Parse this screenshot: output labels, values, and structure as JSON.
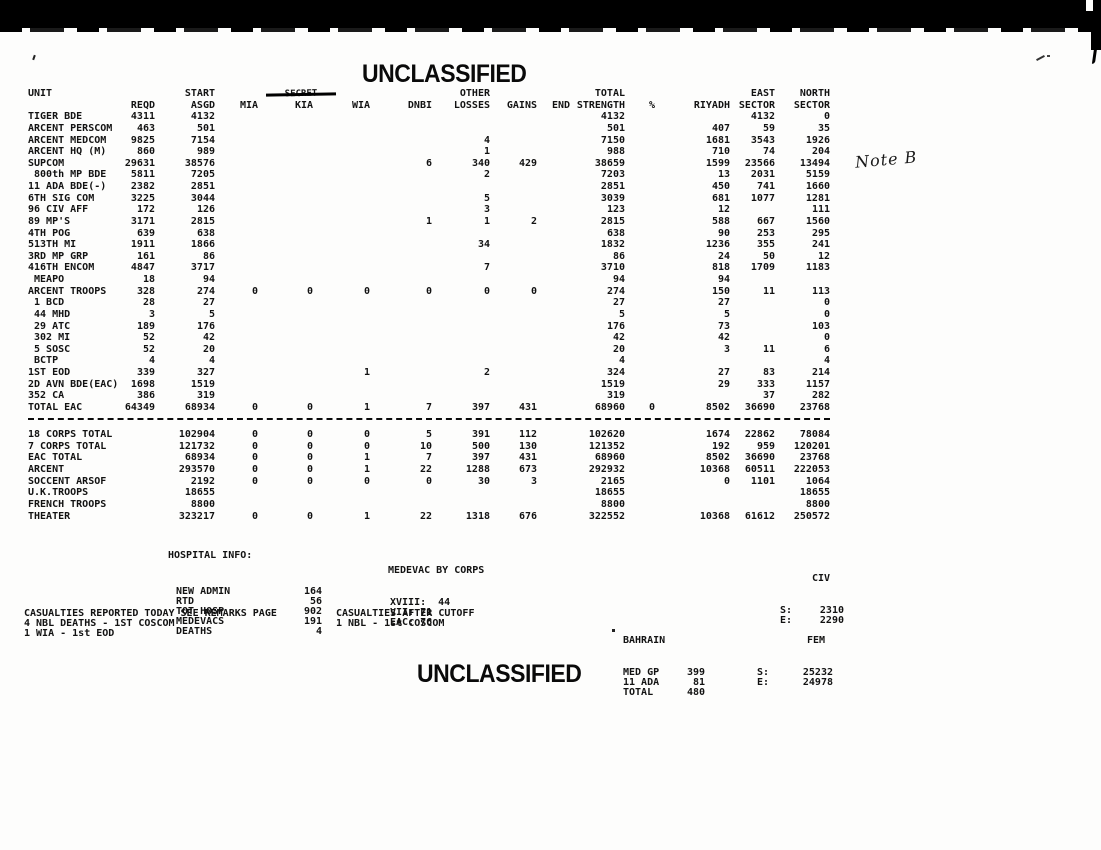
{
  "page": {
    "classification_top": "UNCLASSIFIED",
    "classification_bottom": "UNCLASSIFIED",
    "secret_struck": "SECRET",
    "handwritten_note": "Note B"
  },
  "colors": {
    "ink": "#121212",
    "paper": "#fdfdfc",
    "scan_band": "#000000"
  },
  "table": {
    "header_row1": [
      "UNIT",
      "",
      "START",
      "",
      "",
      "",
      "",
      "OTHER",
      "",
      "",
      "TOTAL",
      "",
      "",
      "EAST",
      "NORTH"
    ],
    "header_row2": [
      "",
      "REQD",
      "ASGD",
      "MIA",
      "KIA",
      "WIA",
      "DNBI",
      "LOSSES",
      "GAINS",
      "END",
      "STRENGTH",
      "%",
      "RIYADH",
      "SECTOR",
      "SECTOR"
    ],
    "columns": [
      "unit",
      "reqd",
      "asgd",
      "mia",
      "kia",
      "wia",
      "dnbi",
      "other-losses",
      "gains",
      "end",
      "total-strength",
      "pct",
      "riyadh",
      "east-sector",
      "north-sector"
    ],
    "rows": [
      [
        "TIGER BDE",
        "4311",
        "4132",
        "",
        "",
        "",
        "",
        "",
        "",
        "",
        "4132",
        "",
        "",
        "4132",
        "0"
      ],
      [
        "ARCENT PERSCOM",
        "463",
        "501",
        "",
        "",
        "",
        "",
        "",
        "",
        "",
        "501",
        "",
        "407",
        "59",
        "35"
      ],
      [
        "ARCENT MEDCOM",
        "9825",
        "7154",
        "",
        "",
        "",
        "",
        "4",
        "",
        "",
        "7150",
        "",
        "1681",
        "3543",
        "1926"
      ],
      [
        "ARCENT HQ (M)",
        "860",
        "989",
        "",
        "",
        "",
        "",
        "1",
        "",
        "",
        "988",
        "",
        "710",
        "74",
        "204"
      ],
      [
        "SUPCOM",
        "29631",
        "38576",
        "",
        "",
        "",
        "6",
        "340",
        "429",
        "",
        "38659",
        "",
        "1599",
        "23566",
        "13494"
      ],
      [
        " 800th MP BDE",
        "5811",
        "7205",
        "",
        "",
        "",
        "",
        "2",
        "",
        "",
        "7203",
        "",
        "13",
        "2031",
        "5159"
      ],
      [
        "11 ADA BDE(-)",
        "2382",
        "2851",
        "",
        "",
        "",
        "",
        "",
        "",
        "",
        "2851",
        "",
        "450",
        "741",
        "1660"
      ],
      [
        "6TH SIG COM",
        "3225",
        "3044",
        "",
        "",
        "",
        "",
        "5",
        "",
        "",
        "3039",
        "",
        "681",
        "1077",
        "1281"
      ],
      [
        "96 CIV AFF",
        "172",
        "126",
        "",
        "",
        "",
        "",
        "3",
        "",
        "",
        "123",
        "",
        "12",
        "",
        "111"
      ],
      [
        "89 MP'S",
        "3171",
        "2815",
        "",
        "",
        "",
        "1",
        "1",
        "2",
        "",
        "2815",
        "",
        "588",
        "667",
        "1560"
      ],
      [
        "4TH POG",
        "639",
        "638",
        "",
        "",
        "",
        "",
        "",
        "",
        "",
        "638",
        "",
        "90",
        "253",
        "295"
      ],
      [
        "513TH MI",
        "1911",
        "1866",
        "",
        "",
        "",
        "",
        "34",
        "",
        "",
        "1832",
        "",
        "1236",
        "355",
        "241"
      ],
      [
        "3RD MP GRP",
        "161",
        "86",
        "",
        "",
        "",
        "",
        "",
        "",
        "",
        "86",
        "",
        "24",
        "50",
        "12"
      ],
      [
        "416TH ENCOM",
        "4847",
        "3717",
        "",
        "",
        "",
        "",
        "7",
        "",
        "",
        "3710",
        "",
        "818",
        "1709",
        "1183"
      ],
      [
        " MEAPO",
        "18",
        "94",
        "",
        "",
        "",
        "",
        "",
        "",
        "",
        "94",
        "",
        "94",
        "",
        ""
      ],
      [
        "ARCENT TROOPS",
        "328",
        "274",
        "0",
        "0",
        "0",
        "0",
        "0",
        "0",
        "",
        "274",
        "",
        "150",
        "11",
        "113"
      ],
      [
        " 1 BCD",
        "28",
        "27",
        "",
        "",
        "",
        "",
        "",
        "",
        "",
        "27",
        "",
        "27",
        "",
        "0"
      ],
      [
        " 44 MHD",
        "3",
        "5",
        "",
        "",
        "",
        "",
        "",
        "",
        "",
        "5",
        "",
        "5",
        "",
        "0"
      ],
      [
        " 29 ATC",
        "189",
        "176",
        "",
        "",
        "",
        "",
        "",
        "",
        "",
        "176",
        "",
        "73",
        "",
        "103"
      ],
      [
        " 302 MI",
        "52",
        "42",
        "",
        "",
        "",
        "",
        "",
        "",
        "",
        "42",
        "",
        "42",
        "",
        "0"
      ],
      [
        " 5 SOSC",
        "52",
        "20",
        "",
        "",
        "",
        "",
        "",
        "",
        "",
        "20",
        "",
        "3",
        "11",
        "6"
      ],
      [
        " BCTP",
        "4",
        "4",
        "",
        "",
        "",
        "",
        "",
        "",
        "",
        "4",
        "",
        "",
        "",
        "4"
      ],
      [
        "1ST EOD",
        "339",
        "327",
        "",
        "",
        "1",
        "",
        "2",
        "",
        "",
        "324",
        "",
        "27",
        "83",
        "214"
      ],
      [
        "2D AVN BDE(EAC)",
        "1698",
        "1519",
        "",
        "",
        "",
        "",
        "",
        "",
        "",
        "1519",
        "",
        "29",
        "333",
        "1157"
      ],
      [
        "352 CA",
        "386",
        "319",
        "",
        "",
        "",
        "",
        "",
        "",
        "",
        "319",
        "",
        "",
        "37",
        "282"
      ],
      [
        "TOTAL EAC",
        "64349",
        "68934",
        "0",
        "0",
        "1",
        "7",
        "397",
        "431",
        "",
        "68960",
        "0",
        "8502",
        "36690",
        "23768"
      ]
    ],
    "summary_rows": [
      [
        "18 CORPS TOTAL",
        "",
        "102904",
        "0",
        "0",
        "0",
        "5",
        "391",
        "112",
        "",
        "102620",
        "",
        "1674",
        "22862",
        "78084"
      ],
      [
        "7 CORPS TOTAL",
        "",
        "121732",
        "0",
        "0",
        "0",
        "10",
        "500",
        "130",
        "",
        "121352",
        "",
        "192",
        "959",
        "120201"
      ],
      [
        "EAC TOTAL",
        "",
        "68934",
        "0",
        "0",
        "1",
        "7",
        "397",
        "431",
        "",
        "68960",
        "",
        "8502",
        "36690",
        "23768"
      ],
      [
        "ARCENT",
        "",
        "293570",
        "0",
        "0",
        "1",
        "22",
        "1288",
        "673",
        "",
        "292932",
        "",
        "10368",
        "60511",
        "222053"
      ],
      [
        "SOCCENT ARSOF",
        "",
        "2192",
        "0",
        "0",
        "0",
        "0",
        "30",
        "3",
        "",
        "2165",
        "",
        "0",
        "1101",
        "1064"
      ],
      [
        "U.K.TROOPS",
        "",
        "18655",
        "",
        "",
        "",
        "",
        "",
        "",
        "",
        "18655",
        "",
        "",
        "",
        "18655"
      ],
      [
        "FRENCH TROOPS",
        "",
        "8800",
        "",
        "",
        "",
        "",
        "",
        "",
        "",
        "8800",
        "",
        "",
        "",
        "8800"
      ],
      [
        "THEATER",
        "",
        "323217",
        "0",
        "0",
        "1",
        "22",
        "1318",
        "676",
        "",
        "322552",
        "",
        "10368",
        "61612",
        "250572"
      ]
    ]
  },
  "hospital": {
    "title": "HOSPITAL INFO:",
    "items": [
      {
        "label": "NEW ADMIN",
        "value": "164"
      },
      {
        "label": "RTD",
        "value": "56"
      },
      {
        "label": "TOT HOSP",
        "value": "902"
      },
      {
        "label": "MEDEVACS",
        "value": "191"
      },
      {
        "label": "DEATHS",
        "value": "4"
      }
    ]
  },
  "medevac": {
    "title": "MEDEVAC BY CORPS",
    "lines": [
      "XVIII:  44",
      "VII: 71",
      "EAC: 76"
    ]
  },
  "civ": {
    "title": "CIV",
    "items": [
      {
        "label": "S:",
        "value": "2310"
      },
      {
        "label": "E:",
        "value": "2290"
      }
    ]
  },
  "casualties_today": {
    "lines": [
      "CASUALTIES REPORTED TODAY SEE REMARKS PAGE",
      "4 NBL DEATHS - 1ST COSCOM",
      "1 WIA - 1st EOD"
    ]
  },
  "casualties_after": {
    "lines": [
      "CASUALTIES AFTER CUTOFF",
      "1 NBL - 1st COSCOM"
    ]
  },
  "bahrain": {
    "title": "BAHRAIN",
    "items": [
      {
        "label": "MED GP",
        "value": "399"
      },
      {
        "label": "11 ADA",
        "value": "81"
      },
      {
        "label": "TOTAL",
        "value": "480"
      }
    ]
  },
  "fem": {
    "title": "FEM",
    "items": [
      {
        "label": "S:",
        "value": "25232"
      },
      {
        "label": "E:",
        "value": "24978"
      }
    ]
  }
}
